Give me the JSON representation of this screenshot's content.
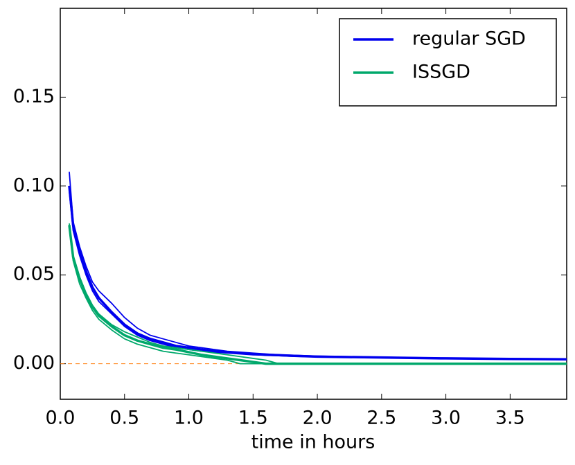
{
  "chart_data": {
    "type": "line",
    "x_label": "time in hours",
    "x": [
      0.07,
      0.1,
      0.15,
      0.2,
      0.25,
      0.3,
      0.4,
      0.5,
      0.6,
      0.7,
      0.8,
      0.9,
      1.0,
      1.1,
      1.2,
      1.3,
      1.4,
      1.5,
      1.6,
      1.7,
      1.8,
      2.0,
      2.5,
      3.0,
      3.5,
      3.94
    ],
    "series": [
      {
        "name": "regular SGD",
        "color": "#0000ee",
        "width": 3.5,
        "values": [
          0.1,
          0.078,
          0.063,
          0.052,
          0.043,
          0.037,
          0.029,
          0.022,
          0.017,
          0.014,
          0.012,
          0.01,
          0.009,
          0.008,
          0.007,
          0.0065,
          0.006,
          0.0055,
          0.005,
          0.0048,
          0.0045,
          0.004,
          0.0035,
          0.003,
          0.0027,
          0.0025
        ]
      },
      {
        "color": "#0000ee",
        "width": 1.8,
        "values": [
          0.108,
          0.08,
          0.066,
          0.055,
          0.046,
          0.041,
          0.034,
          0.026,
          0.02,
          0.016,
          0.014,
          0.012,
          0.01,
          0.009,
          0.008,
          0.007,
          0.0065,
          0.006,
          0.0055,
          0.005,
          0.0048,
          0.0043,
          0.0037,
          0.0032,
          0.0028,
          0.0026
        ]
      },
      {
        "color": "#0000ee",
        "width": 1.8,
        "values": [
          0.097,
          0.075,
          0.061,
          0.05,
          0.041,
          0.035,
          0.028,
          0.021,
          0.016,
          0.013,
          0.011,
          0.009,
          0.008,
          0.007,
          0.0065,
          0.006,
          0.0055,
          0.005,
          0.0048,
          0.0045,
          0.0042,
          0.0038,
          0.0033,
          0.0029,
          0.0026,
          0.0024
        ]
      },
      {
        "name": "ISSGD",
        "color": "#00a86b",
        "width": 3.5,
        "values": [
          0.078,
          0.06,
          0.048,
          0.039,
          0.032,
          0.027,
          0.021,
          0.016,
          0.013,
          0.011,
          0.009,
          0.008,
          0.0065,
          0.005,
          0.004,
          0.003,
          0.002,
          0.001,
          0,
          0,
          0,
          0,
          0,
          0,
          0,
          0
        ]
      },
      {
        "color": "#00a86b",
        "width": 1.8,
        "values": [
          0.076,
          0.058,
          0.045,
          0.037,
          0.03,
          0.025,
          0.019,
          0.014,
          0.011,
          0.009,
          0.007,
          0.006,
          0.005,
          0.004,
          0.003,
          0.002,
          0,
          0,
          0,
          0,
          0,
          0,
          0,
          0,
          0,
          0
        ]
      },
      {
        "color": "#00a86b",
        "width": 1.8,
        "values": [
          0.079,
          0.061,
          0.049,
          0.04,
          0.033,
          0.028,
          0.022,
          0.018,
          0.015,
          0.012,
          0.01,
          0.009,
          0.008,
          0.007,
          0.006,
          0.005,
          0.004,
          0.003,
          0.002,
          0,
          0,
          0,
          0,
          0,
          0,
          0
        ]
      }
    ],
    "reference_line": {
      "y": 0,
      "color": "#ff7f0e"
    },
    "xlim": [
      0,
      3.94
    ],
    "ylim": [
      -0.02,
      0.2
    ],
    "xticks": [
      {
        "value": 0,
        "label": "0.0"
      },
      0.5,
      {
        "value": 1,
        "label": "1.0"
      },
      1.5,
      {
        "value": 2,
        "label": "2.0"
      },
      2.5,
      {
        "value": 3,
        "label": "3.0"
      },
      3.5
    ],
    "yticks": [
      {
        "value": 0,
        "label": "0.00"
      },
      {
        "value": 0.05,
        "label": "0.05"
      },
      {
        "value": 0.1,
        "label": "0.10"
      },
      {
        "value": 0.15,
        "label": "0.15"
      }
    ],
    "legend": "upper right"
  }
}
